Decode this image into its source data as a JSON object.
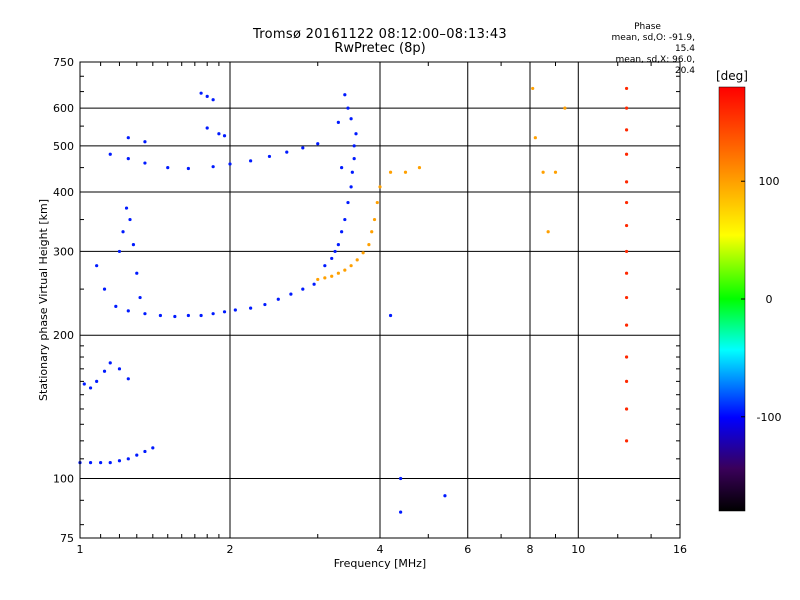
{
  "chart_data": {
    "type": "scatter",
    "title": "Tromsø 20161122 08:12:00–08:13:43",
    "subtitle": "RwPretec (8p)",
    "xlabel": "Frequency [MHz]",
    "ylabel": "Stationary phase Virtual Height [km]",
    "x_scale": "log",
    "y_scale": "log",
    "xlim": [
      1,
      16
    ],
    "ylim": [
      75,
      750
    ],
    "x_ticks": [
      "1",
      "2",
      "4",
      "6",
      "8",
      "10",
      "16"
    ],
    "y_ticks": [
      "75",
      "100",
      "200",
      "300",
      "400",
      "500",
      "600",
      "750"
    ],
    "grid": true,
    "colorbar": {
      "label": "[deg]",
      "range": [
        -180,
        180
      ],
      "ticks": [
        "100",
        "0",
        "-100"
      ]
    },
    "stats": {
      "header": "Phase",
      "line1": "mean, sd,O:  -91.9, 15.4",
      "line2": "mean, sd,X:  96.0, 20.4"
    },
    "series": [
      {
        "phase_deg": -95,
        "points": [
          [
            1.0,
            108
          ],
          [
            1.05,
            108
          ],
          [
            1.1,
            108
          ],
          [
            1.15,
            108
          ],
          [
            1.2,
            109
          ],
          [
            1.25,
            110
          ],
          [
            1.3,
            112
          ],
          [
            1.35,
            114
          ],
          [
            1.4,
            116
          ],
          [
            1.02,
            158
          ],
          [
            1.05,
            155
          ],
          [
            1.08,
            160
          ],
          [
            1.12,
            168
          ],
          [
            1.15,
            175
          ],
          [
            1.2,
            170
          ],
          [
            1.25,
            162
          ],
          [
            1.08,
            280
          ],
          [
            1.12,
            250
          ],
          [
            1.18,
            230
          ],
          [
            1.2,
            300
          ],
          [
            1.22,
            330
          ],
          [
            1.24,
            370
          ],
          [
            1.26,
            350
          ],
          [
            1.28,
            310
          ],
          [
            1.3,
            270
          ],
          [
            1.32,
            240
          ],
          [
            1.25,
            225
          ],
          [
            1.35,
            222
          ],
          [
            1.45,
            220
          ],
          [
            1.55,
            219
          ],
          [
            1.65,
            220
          ],
          [
            1.75,
            220
          ],
          [
            1.85,
            222
          ],
          [
            1.95,
            224
          ],
          [
            2.05,
            226
          ],
          [
            2.2,
            228
          ],
          [
            2.35,
            232
          ],
          [
            2.5,
            238
          ],
          [
            2.65,
            244
          ],
          [
            2.8,
            250
          ],
          [
            2.95,
            256
          ],
          [
            1.15,
            480
          ],
          [
            1.25,
            470
          ],
          [
            1.35,
            460
          ],
          [
            1.5,
            450
          ],
          [
            1.65,
            448
          ],
          [
            1.85,
            452
          ],
          [
            2.0,
            458
          ],
          [
            2.2,
            465
          ],
          [
            2.4,
            475
          ],
          [
            2.6,
            485
          ],
          [
            2.8,
            495
          ],
          [
            3.0,
            505
          ],
          [
            1.25,
            520
          ],
          [
            1.35,
            510
          ],
          [
            1.8,
            545
          ],
          [
            1.9,
            530
          ],
          [
            1.95,
            525
          ],
          [
            1.75,
            645
          ],
          [
            1.8,
            635
          ],
          [
            1.85,
            625
          ],
          [
            3.1,
            280
          ],
          [
            3.2,
            290
          ],
          [
            3.25,
            300
          ],
          [
            3.3,
            310
          ],
          [
            3.35,
            330
          ],
          [
            3.4,
            350
          ],
          [
            3.45,
            380
          ],
          [
            3.5,
            410
          ],
          [
            3.52,
            440
          ],
          [
            3.55,
            470
          ],
          [
            3.55,
            500
          ],
          [
            3.58,
            530
          ],
          [
            3.5,
            570
          ],
          [
            3.45,
            600
          ],
          [
            3.4,
            640
          ],
          [
            3.3,
            560
          ],
          [
            3.35,
            450
          ],
          [
            4.2,
            220
          ],
          [
            4.4,
            100
          ],
          [
            4.4,
            85
          ],
          [
            5.4,
            92
          ]
        ]
      },
      {
        "phase_deg": 100,
        "points": [
          [
            3.0,
            262
          ],
          [
            3.1,
            264
          ],
          [
            3.2,
            266
          ],
          [
            3.3,
            270
          ],
          [
            3.4,
            274
          ],
          [
            3.5,
            280
          ],
          [
            3.6,
            288
          ],
          [
            3.7,
            298
          ],
          [
            3.8,
            310
          ],
          [
            3.85,
            330
          ],
          [
            3.9,
            350
          ],
          [
            3.95,
            380
          ],
          [
            4.0,
            410
          ],
          [
            4.2,
            440
          ],
          [
            4.5,
            440
          ],
          [
            4.8,
            450
          ],
          [
            8.1,
            660
          ],
          [
            8.2,
            520
          ],
          [
            8.5,
            440
          ],
          [
            8.7,
            330
          ],
          [
            9.0,
            440
          ],
          [
            9.4,
            600
          ]
        ]
      },
      {
        "phase_deg": 160,
        "points": [
          [
            12.5,
            660
          ],
          [
            12.5,
            600
          ],
          [
            12.5,
            540
          ],
          [
            12.5,
            480
          ],
          [
            12.5,
            420
          ],
          [
            12.5,
            380
          ],
          [
            12.5,
            340
          ],
          [
            12.5,
            300
          ],
          [
            12.5,
            270
          ],
          [
            12.5,
            240
          ],
          [
            12.5,
            210
          ],
          [
            12.5,
            180
          ],
          [
            12.5,
            160
          ],
          [
            12.5,
            140
          ],
          [
            12.5,
            120
          ]
        ]
      }
    ]
  }
}
